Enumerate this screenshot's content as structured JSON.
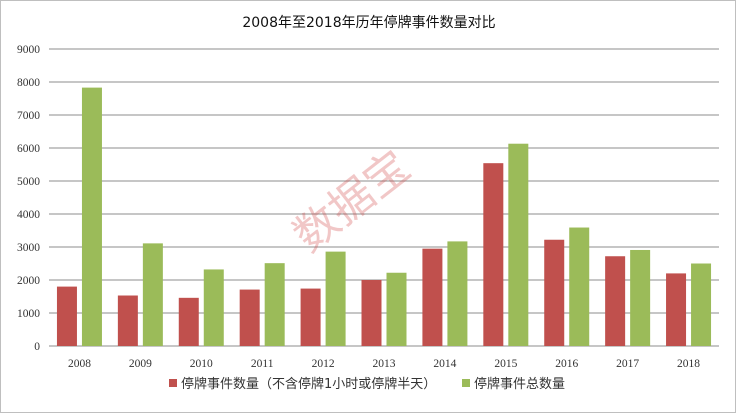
{
  "chart_data": {
    "type": "bar",
    "title": "2008年至2018年历年停牌事件数量对比",
    "xlabel": "",
    "ylabel": "",
    "categories": [
      "2008",
      "2009",
      "2010",
      "2011",
      "2012",
      "2013",
      "2014",
      "2015",
      "2016",
      "2017",
      "2018"
    ],
    "series": [
      {
        "name": "停牌事件数量（不含停牌1小时或停牌半天）",
        "color": "#c0504d",
        "values": [
          1800,
          1530,
          1460,
          1710,
          1740,
          2000,
          2950,
          5540,
          3220,
          2720,
          2200
        ]
      },
      {
        "name": "停牌事件总数量",
        "color": "#9bbb59",
        "values": [
          7830,
          3110,
          2320,
          2510,
          2860,
          2220,
          3170,
          6130,
          3590,
          2910,
          2500
        ]
      }
    ],
    "ylim": [
      0,
      9000
    ],
    "yticks": [
      0,
      1000,
      2000,
      3000,
      4000,
      5000,
      6000,
      7000,
      8000,
      9000
    ],
    "grid": true,
    "legend_position": "bottom",
    "watermark": "数据宝"
  }
}
